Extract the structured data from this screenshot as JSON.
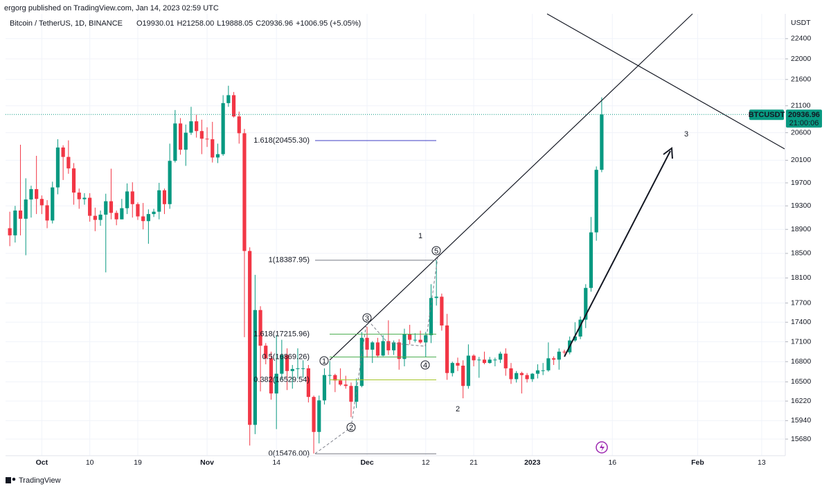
{
  "header": {
    "publisher": "ergorg published on TradingView.com, Jan 14, 2023 02:59 UTC",
    "symbol": "Bitcoin / TetherUS, 1D, BINANCE",
    "ohlc": [
      "O19930.01",
      "H21258.00",
      "L19888.05",
      "C20936.96",
      "+1006.95 (+5.05%)"
    ],
    "footer": "TradingView"
  },
  "chart_data": {
    "type": "candlestick",
    "name": "BTCUSDT",
    "up_color": "#089981",
    "down_color": "#f23645",
    "log_scale": true,
    "grid": true,
    "y_unit": "USDT",
    "last_price_label": "20936.96",
    "countdown": "21:00:06",
    "ylim": [
      15450,
      22900
    ],
    "yticks": [
      22400,
      22000,
      21600,
      21100,
      20600,
      20100,
      19700,
      19300,
      18900,
      18500,
      18100,
      17700,
      17400,
      17100,
      16800,
      16500,
      16220,
      15940,
      15680
    ],
    "xlim": [
      -0.8,
      145.3
    ],
    "xticks": [
      {
        "value": 6,
        "label": "Oct"
      },
      {
        "value": 15,
        "label": "10"
      },
      {
        "value": 24,
        "label": "19"
      },
      {
        "value": 37,
        "label": "Nov"
      },
      {
        "value": 50,
        "label": "14"
      },
      {
        "value": 67,
        "label": "Dec"
      },
      {
        "value": 78,
        "label": "12"
      },
      {
        "value": 87,
        "label": "21"
      },
      {
        "value": 98,
        "label": "2023"
      },
      {
        "value": 113,
        "label": "16"
      },
      {
        "value": 129,
        "label": "Feb"
      },
      {
        "value": 141,
        "label": "13"
      }
    ],
    "open": [
      18920,
      18800,
      19220,
      19080,
      19410,
      19590,
      19420,
      19310,
      19050,
      19620,
      20330,
      20160,
      19955,
      19530,
      19415,
      19440,
      19130,
      19060,
      19150,
      19380,
      19180,
      19070,
      19260,
      19550,
      19330,
      19120,
      19040,
      19160,
      19200,
      19570,
      19330,
      20090,
      20770,
      20290,
      20600,
      20810,
      20630,
      20490,
      20480,
      20150,
      20210,
      21150,
      21300,
      20900,
      20590,
      18540,
      15880,
      17590,
      17040,
      16850,
      16330,
      16620,
      16900,
      16660,
      16690,
      16700,
      16700,
      16280,
      15780,
      16230,
      16600,
      16600,
      16520,
      16460,
      16440,
      16210,
      16440,
      17160,
      16980,
      17090,
      16890,
      17110,
      16970,
      17090,
      16840,
      17220,
      17130,
      17130,
      17090,
      17200,
      17780,
      17800,
      17350,
      16630,
      16780,
      16740,
      16440,
      16890,
      16820,
      16830,
      16780,
      16830,
      16830,
      16920,
      16700,
      16540,
      16630,
      16600,
      16540,
      16620,
      16670,
      16670,
      16850,
      16830,
      16950,
      16940,
      17120,
      17180,
      17440,
      17940,
      18850,
      19930.01
    ],
    "high": [
      19200,
      19300,
      20380,
      19780,
      19650,
      20180,
      19480,
      19400,
      19720,
      20480,
      20370,
      20460,
      20050,
      19600,
      19520,
      19520,
      19270,
      19220,
      19510,
      19950,
      19220,
      19420,
      19690,
      19710,
      19360,
      19350,
      19240,
      19250,
      19700,
      19600,
      20400,
      21020,
      20870,
      20750,
      21080,
      20930,
      20840,
      20700,
      20800,
      20400,
      21300,
      21480,
      21360,
      20990,
      20670,
      18600,
      18150,
      17650,
      17080,
      16950,
      17200,
      17130,
      17000,
      16750,
      17000,
      16820,
      16750,
      16300,
      16300,
      16700,
      16810,
      16620,
      16700,
      16590,
      16490,
      16550,
      17250,
      17330,
      17110,
      17160,
      17200,
      17430,
      17120,
      17140,
      17300,
      17360,
      17230,
      17270,
      17250,
      18000,
      18390,
      17850,
      17530,
      16800,
      16860,
      16820,
      17060,
      16910,
      16870,
      16950,
      16870,
      16860,
      16950,
      17000,
      16780,
      16660,
      16650,
      16630,
      16630,
      16760,
      16780,
      17090,
      16880,
      17000,
      16980,
      17180,
      17400,
      17490,
      18000,
      19110,
      19990,
      21258
    ],
    "low": [
      18620,
      18680,
      18800,
      18470,
      19100,
      19160,
      19160,
      18920,
      19000,
      19500,
      19750,
      19860,
      19320,
      19250,
      19320,
      19030,
      18870,
      18960,
      18190,
      19070,
      18970,
      19070,
      19160,
      19100,
      19060,
      18900,
      18660,
      19110,
      19070,
      19160,
      19250,
      20060,
      20200,
      20000,
      20560,
      20510,
      20210,
      20340,
      20060,
      20050,
      20180,
      21080,
      20880,
      20400,
      17170,
      15590,
      15750,
      16360,
      16760,
      16240,
      15820,
      16530,
      16380,
      16400,
      16550,
      16560,
      16200,
      15480,
      15620,
      16170,
      16460,
      16350,
      16440,
      16400,
      15990,
      16120,
      16420,
      16860,
      16780,
      16860,
      16880,
      16900,
      16900,
      16680,
      16730,
      17060,
      17090,
      17070,
      16870,
      17080,
      17660,
      17270,
      16530,
      16580,
      16660,
      16260,
      16400,
      16730,
      16560,
      16760,
      16770,
      16730,
      16780,
      16590,
      16470,
      16490,
      16330,
      16490,
      16500,
      16550,
      16600,
      16650,
      16750,
      16680,
      16910,
      16910,
      17100,
      17140,
      17310,
      17880,
      18710,
      19888.05
    ],
    "close": [
      18800,
      19220,
      19080,
      19410,
      19590,
      19420,
      19310,
      19050,
      19620,
      20330,
      20160,
      19955,
      19530,
      19415,
      19440,
      19130,
      19060,
      19150,
      19380,
      19180,
      19070,
      19260,
      19550,
      19330,
      19120,
      19040,
      19160,
      19200,
      19570,
      19330,
      20090,
      20770,
      20290,
      20600,
      20810,
      20630,
      20490,
      20480,
      20150,
      20210,
      21150,
      21300,
      20900,
      20590,
      18540,
      15880,
      17590,
      17040,
      16850,
      16330,
      16620,
      16900,
      16660,
      16690,
      16700,
      16700,
      16280,
      15780,
      16230,
      16600,
      16600,
      16520,
      16460,
      16440,
      16210,
      16440,
      17160,
      16980,
      17090,
      16890,
      17110,
      16970,
      17090,
      16840,
      17220,
      17130,
      17130,
      17090,
      17200,
      17780,
      17800,
      17350,
      16630,
      16780,
      16740,
      16440,
      16890,
      16820,
      16830,
      16780,
      16830,
      16830,
      16920,
      16700,
      16540,
      16630,
      16600,
      16540,
      16620,
      16670,
      16670,
      16850,
      16830,
      16950,
      16940,
      17120,
      17180,
      17440,
      17940,
      18850,
      19930.01,
      20936.96
    ],
    "fib_levels": [
      {
        "label": "1.618(20455.30)",
        "value": 20455.3,
        "color": "#3c3cc4"
      },
      {
        "label": "1(18387.95)",
        "value": 18387.95,
        "color": "#787b86"
      },
      {
        "label": "1.618(17215.96)",
        "value": 17215.96,
        "color": "#4caf50"
      },
      {
        "label": "0.5(16869.26)",
        "value": 16869.26,
        "color": "#4caf50"
      },
      {
        "label": "0.382(16529.54)",
        "value": 16529.54,
        "color": "#a5c528"
      },
      {
        "label": "0(15476.00)",
        "value": 15476.0,
        "color": "#787b86"
      }
    ],
    "wave_labels": [
      "1",
      "2",
      "3"
    ],
    "circle_labels": [
      "1",
      "2",
      "3",
      "4",
      "5"
    ]
  }
}
